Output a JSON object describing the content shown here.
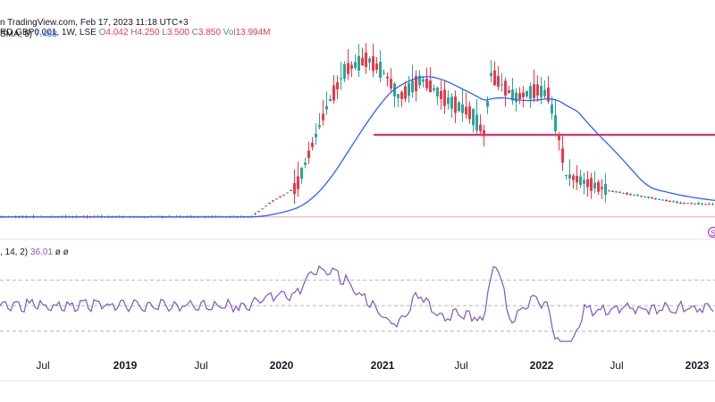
{
  "header": {
    "source": "n TradingView.com, Feb 17, 2023 11:18 UTC+3",
    "symbol": "RD GBP0.001, 1W, LSE",
    "o_label": "O",
    "o_value": "4.042",
    "h_label": "H",
    "h_value": "4.250",
    "l_label": "L",
    "l_value": "3.500",
    "c_label": "C",
    "c_value": "3.850",
    "vol_label": "Vol",
    "vol_value": "13.994M"
  },
  "sma_legend": {
    "label": "SMA, 5)",
    "value": "7.488"
  },
  "rsi_legend": {
    "label": ", 14, 2)",
    "value": "36.01",
    "extra": "ø ø"
  },
  "marker_glyph": "S",
  "colors": {
    "up": "#26a69a",
    "down": "#f23645",
    "sma": "#2962ff",
    "rsi": "#7e57c2",
    "support": "#e91e63",
    "grid": "#b2b5be"
  },
  "chart_data": {
    "type": "candlestick",
    "x_ticks": [
      "Jul",
      "2019",
      "Jul",
      "2020",
      "2021",
      "Jul",
      "2022",
      "Jul",
      "2023"
    ],
    "year_ticks": [
      "2019",
      "2020",
      "2021",
      "2022",
      "2023"
    ],
    "support_level": 5.6,
    "price_range": [
      0,
      12
    ],
    "rsi_range": [
      20,
      90
    ],
    "rsi_levels": [
      70,
      50,
      30
    ],
    "indicators": [
      "SMA",
      "RSI"
    ]
  }
}
